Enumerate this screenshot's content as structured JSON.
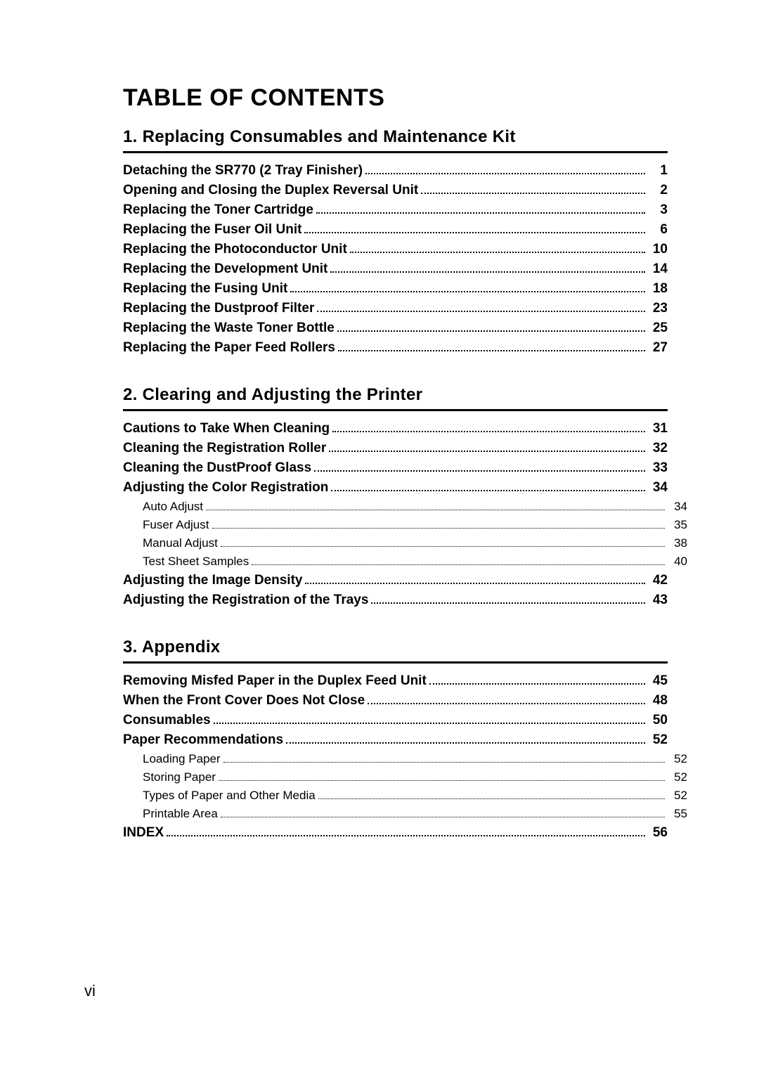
{
  "title": "TABLE OF CONTENTS",
  "pageNumber": "vi",
  "sections": [
    {
      "heading": "1. Replacing Consumables and Maintenance Kit",
      "entries": [
        {
          "label": "Detaching the SR770 (2 Tray Finisher)",
          "page": "1",
          "bold": true,
          "indent": 0
        },
        {
          "label": "Opening and Closing the Duplex Reversal Unit",
          "page": "2",
          "bold": true,
          "indent": 0
        },
        {
          "label": "Replacing the Toner Cartridge",
          "page": "3",
          "bold": true,
          "indent": 0
        },
        {
          "label": "Replacing the Fuser Oil Unit",
          "page": "6",
          "bold": true,
          "indent": 0
        },
        {
          "label": "Replacing the Photoconductor Unit",
          "page": "10",
          "bold": true,
          "indent": 0
        },
        {
          "label": "Replacing the Development Unit",
          "page": "14",
          "bold": true,
          "indent": 0
        },
        {
          "label": "Replacing the Fusing Unit",
          "page": "18",
          "bold": true,
          "indent": 0
        },
        {
          "label": "Replacing the Dustproof Filter",
          "page": "23",
          "bold": true,
          "indent": 0
        },
        {
          "label": "Replacing the Waste Toner Bottle",
          "page": "25",
          "bold": true,
          "indent": 0
        },
        {
          "label": "Replacing the Paper Feed Rollers",
          "page": "27",
          "bold": true,
          "indent": 0
        }
      ]
    },
    {
      "heading": "2. Clearing and Adjusting the Printer",
      "entries": [
        {
          "label": "Cautions to Take When Cleaning",
          "page": "31",
          "bold": true,
          "indent": 0
        },
        {
          "label": "Cleaning the Registration Roller",
          "page": "32",
          "bold": true,
          "indent": 0
        },
        {
          "label": "Cleaning the DustProof Glass",
          "page": "33",
          "bold": true,
          "indent": 0
        },
        {
          "label": "Adjusting the Color Registration",
          "page": "34",
          "bold": true,
          "indent": 0
        },
        {
          "label": "Auto Adjust",
          "page": "34",
          "bold": false,
          "indent": 1
        },
        {
          "label": "Fuser Adjust",
          "page": "35",
          "bold": false,
          "indent": 1
        },
        {
          "label": "Manual Adjust",
          "page": "38",
          "bold": false,
          "indent": 1
        },
        {
          "label": "Test Sheet Samples",
          "page": "40",
          "bold": false,
          "indent": 1
        },
        {
          "label": "Adjusting the Image Density",
          "page": "42",
          "bold": true,
          "indent": 0
        },
        {
          "label": "Adjusting the Registration of the Trays",
          "page": "43",
          "bold": true,
          "indent": 0
        }
      ]
    },
    {
      "heading": "3. Appendix",
      "entries": [
        {
          "label": "Removing Misfed Paper in the Duplex Feed Unit",
          "page": "45",
          "bold": true,
          "indent": 0
        },
        {
          "label": "When the Front Cover Does Not Close",
          "page": "48",
          "bold": true,
          "indent": 0
        },
        {
          "label": "Consumables",
          "page": "50",
          "bold": true,
          "indent": 0
        },
        {
          "label": "Paper Recommendations",
          "page": "52",
          "bold": true,
          "indent": 0
        },
        {
          "label": "Loading Paper",
          "page": "52",
          "bold": false,
          "indent": 1
        },
        {
          "label": "Storing Paper",
          "page": "52",
          "bold": false,
          "indent": 1
        },
        {
          "label": "Types of Paper and Other Media",
          "page": "52",
          "bold": false,
          "indent": 1
        },
        {
          "label": "Printable Area",
          "page": "55",
          "bold": false,
          "indent": 1
        },
        {
          "label": "INDEX",
          "page": "56",
          "bold": true,
          "indent": 0
        }
      ]
    }
  ]
}
